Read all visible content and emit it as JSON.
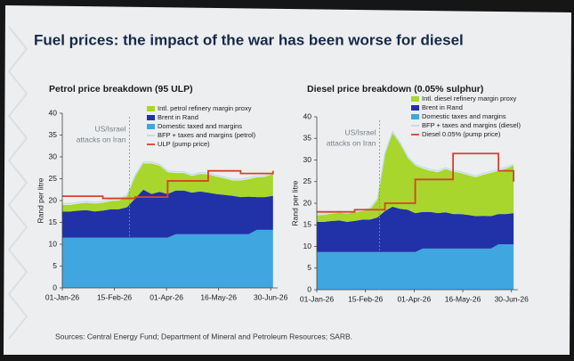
{
  "title": "Fuel prices: the impact of the war has been worse for diesel",
  "source": "Sources: Central Energy Fund; Department of Mineral and Petroleum Resources; SARB.",
  "chart_data": [
    {
      "type": "area",
      "title": "Petrol price breakdown (95 ULP)",
      "ylabel": "Rand per litre",
      "x": [
        "01-Jan-26",
        "08-Jan-26",
        "15-Jan-26",
        "22-Jan-26",
        "29-Jan-26",
        "05-Feb-26",
        "12-Feb-26",
        "19-Feb-26",
        "26-Feb-26",
        "05-Mar-26",
        "12-Mar-26",
        "19-Mar-26",
        "26-Mar-26",
        "02-Apr-26",
        "09-Apr-26",
        "16-Apr-26",
        "23-Apr-26",
        "30-Apr-26",
        "07-May-26",
        "14-May-26",
        "21-May-26",
        "28-May-26",
        "04-Jun-26",
        "11-Jun-26",
        "18-Jun-26",
        "25-Jun-26",
        "02-Jul-26"
      ],
      "xlim": [
        "01-Jan-26",
        "06-Jul-26"
      ],
      "xticks": [
        "01-Jan-26",
        "15-Feb-26",
        "01-Apr-26",
        "16-May-26",
        "30-Jun-26"
      ],
      "ylim": [
        0,
        40
      ],
      "yticks": [
        0,
        5,
        10,
        15,
        20,
        25,
        30,
        35,
        40
      ],
      "annotation": {
        "lines": [
          "US/Israel",
          "attacks on Iran"
        ],
        "x": "28-Feb-26"
      },
      "series": [
        {
          "name": "Intl. petrol refinery margin proxy",
          "kind": "area",
          "color": "#a8d62c",
          "values": [
            1.5,
            1.5,
            1.6,
            1.7,
            1.8,
            1.8,
            1.9,
            2,
            2.5,
            5,
            6,
            7,
            6,
            5,
            4,
            4,
            3.8,
            4,
            4.2,
            4,
            3.8,
            3.5,
            3.8,
            4,
            4.5,
            4.6,
            5
          ]
        },
        {
          "name": "Brent in Rand",
          "kind": "area",
          "color": "#2131a8",
          "values": [
            6,
            6,
            6.2,
            6.3,
            6,
            6.2,
            6.5,
            6.5,
            7,
            9,
            11,
            10,
            10.5,
            10,
            10,
            10,
            9.5,
            9.8,
            9.5,
            9.2,
            9,
            8.8,
            8.5,
            8.6,
            7.5,
            7.5,
            7.8
          ]
        },
        {
          "name": "Domestic taxed and margins",
          "kind": "area",
          "color": "#3fa6e0",
          "values": [
            11.5,
            11.5,
            11.5,
            11.5,
            11.5,
            11.5,
            11.5,
            11.5,
            11.5,
            11.5,
            11.5,
            11.5,
            11.5,
            11.5,
            12.3,
            12.3,
            12.3,
            12.3,
            12.3,
            12.3,
            12.3,
            12.3,
            12.3,
            12.3,
            13.3,
            13.3,
            13.3
          ]
        },
        {
          "name": "BFP + taxes and margins (petrol)",
          "kind": "line",
          "color": "#bcdcea",
          "values": [
            19.3,
            19.3,
            19.6,
            19.8,
            19.6,
            19.8,
            20.2,
            20.3,
            21.3,
            25.8,
            28.8,
            28.8,
            28.3,
            26.8,
            26.6,
            26.6,
            25.9,
            26.4,
            26.3,
            25.8,
            25.4,
            24.9,
            24.9,
            25.2,
            25.6,
            25.7,
            26.4
          ]
        },
        {
          "name": "ULP (pump price)",
          "kind": "line",
          "step": true,
          "color": "#d9412a",
          "values": [
            21,
            21,
            21,
            21,
            21,
            20.5,
            20.5,
            20.5,
            20.5,
            20.8,
            20.8,
            20.8,
            20.8,
            24.5,
            24.5,
            24.5,
            24.5,
            24.5,
            26.8,
            26.8,
            26.8,
            26.8,
            26.2,
            26.2,
            26.2,
            26.2,
            26.8
          ]
        }
      ]
    },
    {
      "type": "area",
      "title": "Diesel price breakdown (0.05% sulphur)",
      "ylabel": "Rand per litre",
      "x": [
        "01-Jan-26",
        "08-Jan-26",
        "15-Jan-26",
        "22-Jan-26",
        "29-Jan-26",
        "05-Feb-26",
        "12-Feb-26",
        "19-Feb-26",
        "26-Feb-26",
        "05-Mar-26",
        "12-Mar-26",
        "19-Mar-26",
        "26-Mar-26",
        "02-Apr-26",
        "09-Apr-26",
        "16-Apr-26",
        "23-Apr-26",
        "30-Apr-26",
        "07-May-26",
        "14-May-26",
        "21-May-26",
        "28-May-26",
        "04-Jun-26",
        "11-Jun-26",
        "18-Jun-26",
        "25-Jun-26",
        "02-Jul-26"
      ],
      "xlim": [
        "01-Jan-26",
        "06-Jul-26"
      ],
      "xticks": [
        "01-Jan-26",
        "15-Feb-26",
        "01-Apr-26",
        "16-May-26",
        "30-Jun-26"
      ],
      "ylim": [
        0,
        40
      ],
      "yticks": [
        0,
        5,
        10,
        15,
        20,
        25,
        30,
        35,
        40
      ],
      "annotation": {
        "lines": [
          "US/Israel",
          "attacks on Iran"
        ],
        "x": "28-Feb-26"
      },
      "series": [
        {
          "name": "Intl. diesel refinery margin proxy",
          "kind": "area",
          "color": "#a8d62c",
          "values": [
            1.5,
            1.6,
            1.7,
            1.8,
            1.9,
            2,
            2,
            2.3,
            4,
            13,
            17,
            15,
            12,
            11,
            10,
            9.5,
            9.5,
            10,
            9.8,
            9.5,
            9.2,
            9,
            9.5,
            10,
            10,
            10.5,
            11
          ]
        },
        {
          "name": "Brent in Rand",
          "kind": "area",
          "color": "#2131a8",
          "values": [
            7,
            7,
            7.2,
            7.3,
            7,
            7.2,
            7.5,
            7.5,
            8,
            9.5,
            10.5,
            10,
            9.8,
            9,
            8.5,
            8.5,
            8.2,
            8.4,
            8,
            8,
            7.8,
            7.5,
            7.6,
            7.5,
            7,
            7,
            7.2
          ]
        },
        {
          "name": "Domestic taxes and margins",
          "kind": "area",
          "color": "#3fa6e0",
          "values": [
            8.7,
            8.7,
            8.7,
            8.7,
            8.7,
            8.7,
            8.7,
            8.7,
            8.7,
            8.7,
            8.7,
            8.7,
            8.7,
            8.7,
            9.5,
            9.5,
            9.5,
            9.5,
            9.5,
            9.5,
            9.5,
            9.5,
            9.5,
            9.5,
            10.5,
            10.5,
            10.5
          ]
        },
        {
          "name": "BFP + taxes and margins (diesel)",
          "kind": "line",
          "color": "#bcdcea",
          "values": [
            17.5,
            17.6,
            17.9,
            18.1,
            17.9,
            18.2,
            18.5,
            18.8,
            21,
            31.5,
            36.5,
            34,
            30.8,
            29,
            28.3,
            27.8,
            27.5,
            28.2,
            27.6,
            27.3,
            26.8,
            26.3,
            26.9,
            27.3,
            27.8,
            28.3,
            29
          ]
        },
        {
          "name": "Diesel 0.05% (pump price)",
          "kind": "line",
          "step": true,
          "color": "#d9412a",
          "values": [
            18,
            18,
            18,
            18,
            18,
            18.5,
            18.5,
            18.5,
            18.5,
            20,
            20,
            20,
            20,
            25.5,
            25.5,
            25.5,
            25.5,
            25.5,
            31.5,
            31.5,
            31.5,
            31.5,
            31.5,
            31.5,
            27.5,
            27.5,
            25
          ]
        }
      ]
    }
  ]
}
